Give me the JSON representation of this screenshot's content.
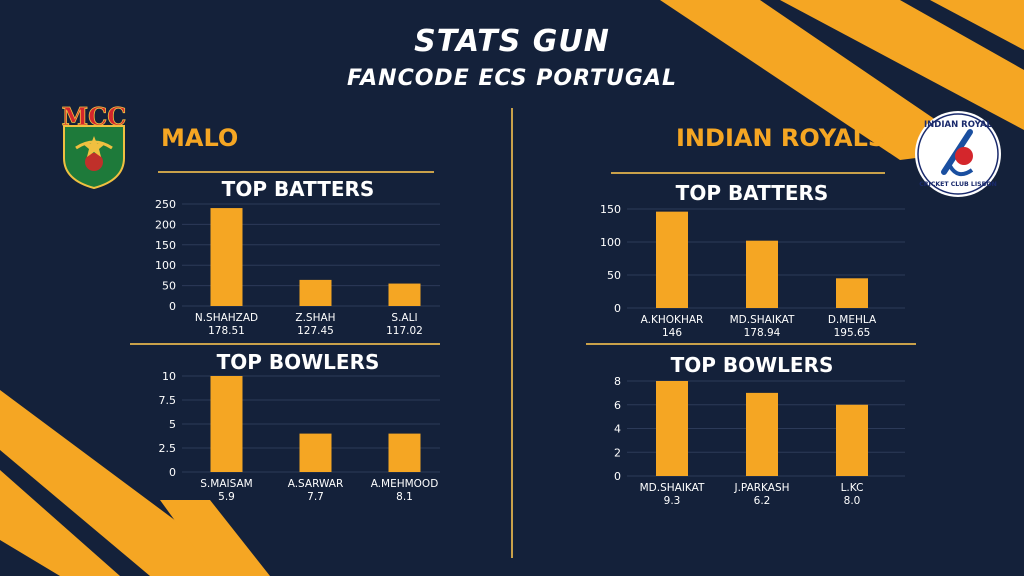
{
  "header": {
    "title": "STATS GUN",
    "subtitle": "FANCODE ECS PORTUGAL"
  },
  "colors": {
    "background": "#14213a",
    "accent": "#f5a623",
    "bar": "#f5a623",
    "divider": "#c9a14a"
  },
  "teams": [
    {
      "name": "MALO",
      "logo": {
        "icon": "mcc-crest-icon",
        "text": "MCC"
      }
    },
    {
      "name": "INDIAN ROYALS",
      "logo": {
        "icon": "indian-royal-cricket-club-logo",
        "text_top": "INDIAN ROYAL",
        "text_bottom": "CRICKET CLUB LISBON"
      }
    }
  ],
  "chart_data": [
    {
      "type": "bar",
      "title": "TOP BATTERS",
      "team": "MALO",
      "categories": [
        "N.SHAHZAD",
        "Z.SHAH",
        "S.ALI"
      ],
      "sublabels": [
        "178.51",
        "127.45",
        "117.02"
      ],
      "values": [
        240,
        64,
        55
      ],
      "ylim": [
        0,
        250
      ],
      "yticks": [
        "0",
        "50",
        "100",
        "150",
        "200",
        "250"
      ],
      "ytick_values": [
        0,
        50,
        100,
        150,
        200,
        250
      ]
    },
    {
      "type": "bar",
      "title": "TOP BOWLERS",
      "team": "MALO",
      "categories": [
        "S.MAISAM",
        "A.SARWAR",
        "A.MEHMOOD"
      ],
      "sublabels": [
        "5.9",
        "7.7",
        "8.1"
      ],
      "values": [
        10,
        4,
        4
      ],
      "ylim": [
        0,
        10
      ],
      "yticks": [
        "0",
        "2.5",
        "5",
        "7.5",
        "10"
      ],
      "ytick_values": [
        0,
        2.5,
        5,
        7.5,
        10
      ]
    },
    {
      "type": "bar",
      "title": "TOP BATTERS",
      "team": "INDIAN ROYALS",
      "categories": [
        "A.KHOKHAR",
        "MD.SHAIKAT",
        "D.MEHLA"
      ],
      "sublabels": [
        "146",
        "178.94",
        "195.65"
      ],
      "values": [
        146,
        102,
        45
      ],
      "ylim": [
        0,
        150
      ],
      "yticks": [
        "0",
        "50",
        "100",
        "150"
      ],
      "ytick_values": [
        0,
        50,
        100,
        150
      ]
    },
    {
      "type": "bar",
      "title": "TOP BOWLERS",
      "team": "INDIAN ROYALS",
      "categories": [
        "MD.SHAIKAT",
        "J.PARKASH",
        "L.KC"
      ],
      "sublabels": [
        "9.3",
        "6.2",
        "8.0"
      ],
      "values": [
        8,
        7,
        6
      ],
      "ylim": [
        0,
        8
      ],
      "yticks": [
        "0",
        "2",
        "4",
        "6",
        "8"
      ],
      "ytick_values": [
        0,
        2,
        4,
        6,
        8
      ]
    }
  ]
}
